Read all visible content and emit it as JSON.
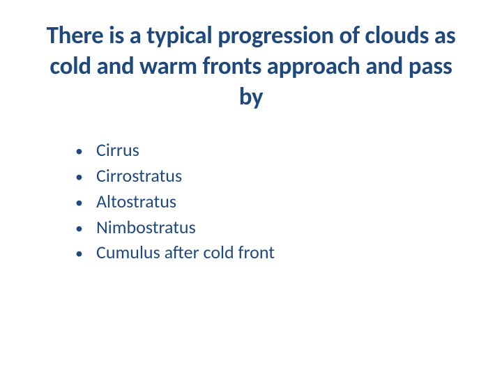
{
  "slide": {
    "title": "There is a typical progression of clouds as cold and warm fronts approach and pass by",
    "title_color": "#1f497d",
    "title_fontsize": 35,
    "title_fontweight": 700,
    "bullet_color": "#1f497d",
    "item_color": "#1f497d",
    "item_fontsize": 26,
    "background_color": "#ffffff",
    "items": [
      "Cirrus",
      "Cirrostratus",
      "Altostratus",
      "Nimbostratus",
      "Cumulus after cold front"
    ]
  }
}
